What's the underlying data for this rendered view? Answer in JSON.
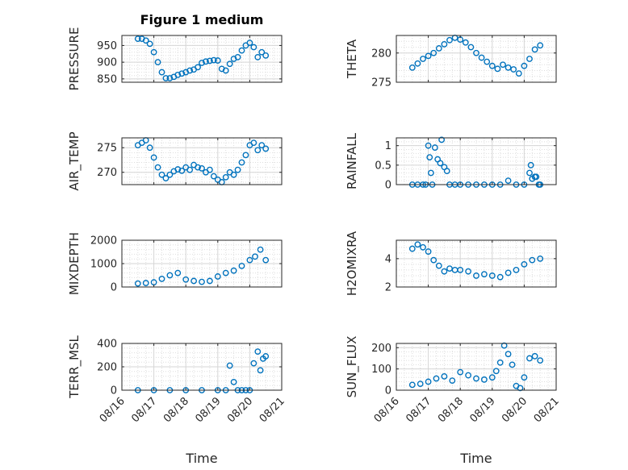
{
  "figure": {
    "background": "#ffffff"
  },
  "chart_data": {
    "type": "scatter",
    "title": "Figure 1 medium",
    "xlabel": "Time",
    "x_tick_labels": [
      "08/16",
      "08/17",
      "08/18",
      "08/19",
      "08/20",
      "08/21"
    ],
    "xlim": [
      "2012-08-16",
      "2012-08-21"
    ],
    "marker": "circle",
    "marker_color": "#0072bd",
    "grid": true,
    "panels": [
      {
        "ylabel": "PRESSURE",
        "ylim": [
          840,
          980
        ],
        "yticks": [
          850,
          900,
          950
        ],
        "series": [
          {
            "x": [
              "2012-08-16 12:00",
              "2012-08-16 15:00",
              "2012-08-16 18:00",
              "2012-08-16 21:00",
              "2012-08-17 00:00",
              "2012-08-17 03:00",
              "2012-08-17 06:00",
              "2012-08-17 09:00",
              "2012-08-17 12:00",
              "2012-08-17 15:00",
              "2012-08-17 18:00",
              "2012-08-17 21:00",
              "2012-08-18 00:00",
              "2012-08-18 03:00",
              "2012-08-18 06:00",
              "2012-08-18 09:00",
              "2012-08-18 12:00",
              "2012-08-18 15:00",
              "2012-08-18 18:00",
              "2012-08-18 21:00",
              "2012-08-19 00:00",
              "2012-08-19 03:00",
              "2012-08-19 06:00",
              "2012-08-19 09:00",
              "2012-08-19 12:00",
              "2012-08-19 15:00",
              "2012-08-19 18:00",
              "2012-08-19 21:00",
              "2012-08-20 00:00",
              "2012-08-20 03:00",
              "2012-08-20 06:00",
              "2012-08-20 09:00",
              "2012-08-20 12:00"
            ],
            "y": [
              970,
              970,
              965,
              955,
              930,
              900,
              870,
              852,
              852,
              856,
              862,
              866,
              870,
              875,
              878,
              885,
              898,
              902,
              904,
              906,
              905,
              880,
              875,
              895,
              910,
              915,
              935,
              950,
              958,
              945,
              915,
              930,
              920
            ]
          }
        ]
      },
      {
        "ylabel": "THETA",
        "ylim": [
          275,
          283
        ],
        "yticks": [
          275,
          280
        ],
        "series": [
          {
            "x": [
              "2012-08-16 12:00",
              "2012-08-16 16:00",
              "2012-08-16 20:00",
              "2012-08-17 00:00",
              "2012-08-17 04:00",
              "2012-08-17 08:00",
              "2012-08-17 12:00",
              "2012-08-17 16:00",
              "2012-08-17 20:00",
              "2012-08-18 00:00",
              "2012-08-18 04:00",
              "2012-08-18 08:00",
              "2012-08-18 12:00",
              "2012-08-18 16:00",
              "2012-08-18 20:00",
              "2012-08-19 00:00",
              "2012-08-19 04:00",
              "2012-08-19 08:00",
              "2012-08-19 12:00",
              "2012-08-19 16:00",
              "2012-08-19 20:00",
              "2012-08-20 00:00",
              "2012-08-20 04:00",
              "2012-08-20 08:00",
              "2012-08-20 12:00"
            ],
            "y": [
              277.5,
              278.2,
              279.0,
              279.5,
              280.0,
              280.8,
              281.5,
              282.2,
              282.6,
              282.3,
              281.8,
              281.0,
              280.0,
              279.2,
              278.5,
              277.8,
              277.3,
              278.0,
              277.5,
              277.2,
              276.5,
              277.8,
              279.0,
              280.6,
              281.3
            ]
          }
        ]
      },
      {
        "ylabel": "AIR_TEMP",
        "ylim": [
          267.5,
          277
        ],
        "yticks": [
          270,
          275
        ],
        "series": [
          {
            "x": [
              "2012-08-16 12:00",
              "2012-08-16 15:00",
              "2012-08-16 18:00",
              "2012-08-16 21:00",
              "2012-08-17 00:00",
              "2012-08-17 03:00",
              "2012-08-17 06:00",
              "2012-08-17 09:00",
              "2012-08-17 12:00",
              "2012-08-17 15:00",
              "2012-08-17 18:00",
              "2012-08-17 21:00",
              "2012-08-18 00:00",
              "2012-08-18 03:00",
              "2012-08-18 06:00",
              "2012-08-18 09:00",
              "2012-08-18 12:00",
              "2012-08-18 15:00",
              "2012-08-18 18:00",
              "2012-08-18 21:00",
              "2012-08-19 00:00",
              "2012-08-19 03:00",
              "2012-08-19 06:00",
              "2012-08-19 09:00",
              "2012-08-19 12:00",
              "2012-08-19 15:00",
              "2012-08-19 18:00",
              "2012-08-19 21:00",
              "2012-08-20 00:00",
              "2012-08-20 03:00",
              "2012-08-20 06:00",
              "2012-08-20 09:00",
              "2012-08-20 12:00"
            ],
            "y": [
              275.5,
              276.0,
              276.5,
              275.0,
              273.0,
              271.0,
              269.5,
              268.8,
              269.5,
              270.2,
              270.6,
              270.3,
              271.0,
              270.5,
              271.5,
              271.0,
              270.8,
              270.0,
              270.5,
              269.2,
              268.5,
              268.0,
              269.0,
              270.0,
              269.5,
              270.5,
              272.0,
              273.5,
              275.5,
              276.0,
              274.5,
              275.5,
              274.8
            ]
          }
        ]
      },
      {
        "ylabel": "RAINFALL",
        "ylim": [
          0,
          1.2
        ],
        "yticks": [
          0,
          0.5,
          1
        ],
        "series": [
          {
            "x": [
              "2012-08-16 12:00",
              "2012-08-16 16:00",
              "2012-08-16 20:00",
              "2012-08-16 22:00",
              "2012-08-17 00:00",
              "2012-08-17 01:00",
              "2012-08-17 02:00",
              "2012-08-17 03:00",
              "2012-08-17 05:00",
              "2012-08-17 07:00",
              "2012-08-17 09:00",
              "2012-08-17 10:00",
              "2012-08-17 12:00",
              "2012-08-17 14:00",
              "2012-08-17 16:00",
              "2012-08-17 20:00",
              "2012-08-18 00:00",
              "2012-08-18 06:00",
              "2012-08-18 12:00",
              "2012-08-18 18:00",
              "2012-08-19 00:00",
              "2012-08-19 06:00",
              "2012-08-19 12:00",
              "2012-08-19 18:00",
              "2012-08-20 00:00",
              "2012-08-20 04:00",
              "2012-08-20 05:00",
              "2012-08-20 06:00",
              "2012-08-20 08:00",
              "2012-08-20 09:00",
              "2012-08-20 11:00",
              "2012-08-20 12:00"
            ],
            "y": [
              0,
              0,
              0,
              0,
              1.0,
              0.7,
              0.3,
              0,
              0.95,
              0.65,
              0.55,
              1.15,
              0.45,
              0.35,
              0,
              0,
              0,
              0,
              0,
              0,
              0,
              0,
              0.1,
              0,
              0,
              0.3,
              0.5,
              0.15,
              0.2,
              0.2,
              0,
              0
            ]
          }
        ]
      },
      {
        "ylabel": "MIXDEPTH",
        "ylim": [
          0,
          2000
        ],
        "yticks": [
          0,
          1000,
          2000
        ],
        "series": [
          {
            "x": [
              "2012-08-16 12:00",
              "2012-08-16 18:00",
              "2012-08-17 00:00",
              "2012-08-17 06:00",
              "2012-08-17 12:00",
              "2012-08-17 18:00",
              "2012-08-18 00:00",
              "2012-08-18 06:00",
              "2012-08-18 12:00",
              "2012-08-18 18:00",
              "2012-08-19 00:00",
              "2012-08-19 06:00",
              "2012-08-19 12:00",
              "2012-08-19 18:00",
              "2012-08-20 00:00",
              "2012-08-20 04:00",
              "2012-08-20 08:00",
              "2012-08-20 12:00"
            ],
            "y": [
              150,
              170,
              200,
              350,
              500,
              600,
              320,
              260,
              220,
              260,
              450,
              600,
              700,
              900,
              1150,
              1300,
              1600,
              1150
            ]
          }
        ]
      },
      {
        "ylabel": "H2OMIXRA",
        "ylim": [
          2,
          5.3
        ],
        "yticks": [
          2,
          4
        ],
        "series": [
          {
            "x": [
              "2012-08-16 12:00",
              "2012-08-16 16:00",
              "2012-08-16 20:00",
              "2012-08-17 00:00",
              "2012-08-17 04:00",
              "2012-08-17 08:00",
              "2012-08-17 12:00",
              "2012-08-17 16:00",
              "2012-08-17 20:00",
              "2012-08-18 00:00",
              "2012-08-18 06:00",
              "2012-08-18 12:00",
              "2012-08-18 18:00",
              "2012-08-19 00:00",
              "2012-08-19 06:00",
              "2012-08-19 12:00",
              "2012-08-19 18:00",
              "2012-08-20 00:00",
              "2012-08-20 06:00",
              "2012-08-20 12:00"
            ],
            "y": [
              4.7,
              5.0,
              4.8,
              4.5,
              3.9,
              3.5,
              3.1,
              3.3,
              3.2,
              3.2,
              3.1,
              2.8,
              2.9,
              2.8,
              2.7,
              3.0,
              3.2,
              3.6,
              3.9,
              4.0
            ]
          }
        ]
      },
      {
        "ylabel": "TERR_MSL",
        "ylim": [
          0,
          400
        ],
        "yticks": [
          0,
          200,
          400
        ],
        "series": [
          {
            "x": [
              "2012-08-16 12:00",
              "2012-08-17 00:00",
              "2012-08-17 12:00",
              "2012-08-18 00:00",
              "2012-08-18 12:00",
              "2012-08-19 00:00",
              "2012-08-19 06:00",
              "2012-08-19 09:00",
              "2012-08-19 12:00",
              "2012-08-19 15:00",
              "2012-08-19 18:00",
              "2012-08-19 21:00",
              "2012-08-20 00:00",
              "2012-08-20 03:00",
              "2012-08-20 06:00",
              "2012-08-20 08:00",
              "2012-08-20 10:00",
              "2012-08-20 12:00"
            ],
            "y": [
              0,
              0,
              0,
              0,
              0,
              0,
              0,
              210,
              70,
              0,
              0,
              0,
              0,
              230,
              330,
              170,
              270,
              290
            ]
          }
        ]
      },
      {
        "ylabel": "SUN_FLUX",
        "ylim": [
          0,
          220
        ],
        "yticks": [
          0,
          100,
          200
        ],
        "series": [
          {
            "x": [
              "2012-08-16 12:00",
              "2012-08-16 18:00",
              "2012-08-17 00:00",
              "2012-08-17 06:00",
              "2012-08-17 12:00",
              "2012-08-17 18:00",
              "2012-08-18 00:00",
              "2012-08-18 06:00",
              "2012-08-18 12:00",
              "2012-08-18 18:00",
              "2012-08-19 00:00",
              "2012-08-19 03:00",
              "2012-08-19 06:00",
              "2012-08-19 09:00",
              "2012-08-19 12:00",
              "2012-08-19 15:00",
              "2012-08-19 18:00",
              "2012-08-19 21:00",
              "2012-08-20 00:00",
              "2012-08-20 04:00",
              "2012-08-20 08:00",
              "2012-08-20 12:00"
            ],
            "y": [
              25,
              30,
              40,
              55,
              65,
              45,
              85,
              70,
              55,
              50,
              60,
              90,
              130,
              210,
              170,
              120,
              20,
              10,
              60,
              150,
              160,
              140
            ]
          }
        ]
      }
    ]
  }
}
